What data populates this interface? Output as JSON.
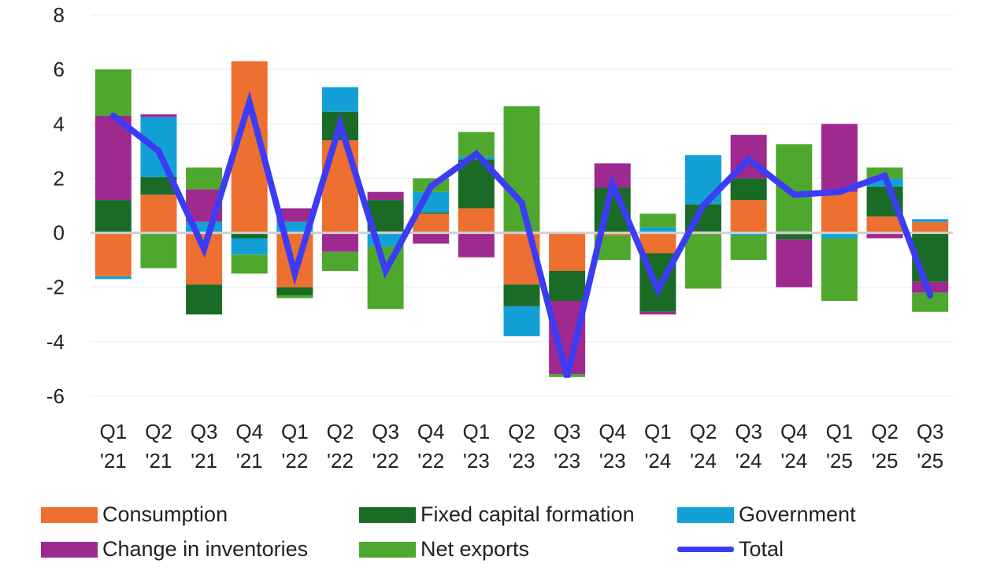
{
  "chart_data": {
    "type": "bar",
    "stacked": true,
    "categories": [
      [
        "Q1",
        "'21"
      ],
      [
        "Q2",
        "'21"
      ],
      [
        "Q3",
        "'21"
      ],
      [
        "Q4",
        "'21"
      ],
      [
        "Q1",
        "'22"
      ],
      [
        "Q2",
        "'22"
      ],
      [
        "Q3",
        "'22"
      ],
      [
        "Q4",
        "'22"
      ],
      [
        "Q1",
        "'23"
      ],
      [
        "Q2",
        "'23"
      ],
      [
        "Q3",
        "'23"
      ],
      [
        "Q4",
        "'23"
      ],
      [
        "Q1",
        "'24"
      ],
      [
        "Q2",
        "'24"
      ],
      [
        "Q3",
        "'24"
      ],
      [
        "Q4",
        "'24"
      ],
      [
        "Q1",
        "'25"
      ],
      [
        "Q2",
        "'25"
      ],
      [
        "Q3",
        "'25"
      ]
    ],
    "ylim": [
      -6,
      8
    ],
    "yticks": [
      -6,
      -4,
      -2,
      0,
      2,
      4,
      6,
      8
    ],
    "grid": true,
    "legend_placement": "bottom",
    "series": [
      {
        "name": "Consumption",
        "color": "#ED7031",
        "values": [
          -1.6,
          1.4,
          -1.9,
          6.3,
          -2.0,
          3.4,
          0.05,
          0.7,
          0.9,
          -1.9,
          -1.4,
          -0.1,
          -0.75,
          0.05,
          1.2,
          -0.05,
          1.5,
          0.6,
          0.4
        ]
      },
      {
        "name": "Fixed capital formation",
        "color": "#1A6B26",
        "values": [
          1.2,
          0.65,
          -1.1,
          -0.2,
          -0.3,
          1.05,
          1.15,
          0.05,
          1.8,
          -0.8,
          -1.1,
          1.65,
          -2.15,
          1.0,
          0.8,
          -0.2,
          0.0,
          1.1,
          -1.8
        ]
      },
      {
        "name": "Government",
        "color": "#12A0D7",
        "values": [
          -0.1,
          2.2,
          0.4,
          -0.6,
          0.4,
          0.9,
          -0.5,
          0.75,
          0.1,
          -1.1,
          0.0,
          0.0,
          0.2,
          1.8,
          -0.1,
          0.05,
          -0.2,
          0.3,
          0.1
        ]
      },
      {
        "name": "Change in inventories",
        "color": "#9E2A8F",
        "values": [
          3.1,
          0.1,
          1.2,
          0.0,
          0.5,
          -0.7,
          0.3,
          -0.4,
          -0.9,
          0.05,
          -2.7,
          0.9,
          -0.1,
          -0.05,
          1.6,
          -1.75,
          2.5,
          -0.2,
          -0.4
        ]
      },
      {
        "name": "Net exports",
        "color": "#4FA82E",
        "values": [
          1.7,
          -1.3,
          0.8,
          -0.7,
          -0.1,
          -0.7,
          -2.3,
          0.5,
          0.9,
          4.6,
          -0.1,
          -0.9,
          0.5,
          -2.0,
          -0.9,
          3.2,
          -2.3,
          0.4,
          -0.7
        ]
      }
    ],
    "line": {
      "name": "Total",
      "color": "#3C3CF5",
      "values": [
        4.3,
        3.0,
        -0.6,
        4.8,
        -1.5,
        4.0,
        -1.4,
        1.7,
        2.9,
        1.1,
        -5.3,
        1.8,
        -2.1,
        1.0,
        2.7,
        1.4,
        1.5,
        2.1,
        -2.3
      ]
    }
  }
}
